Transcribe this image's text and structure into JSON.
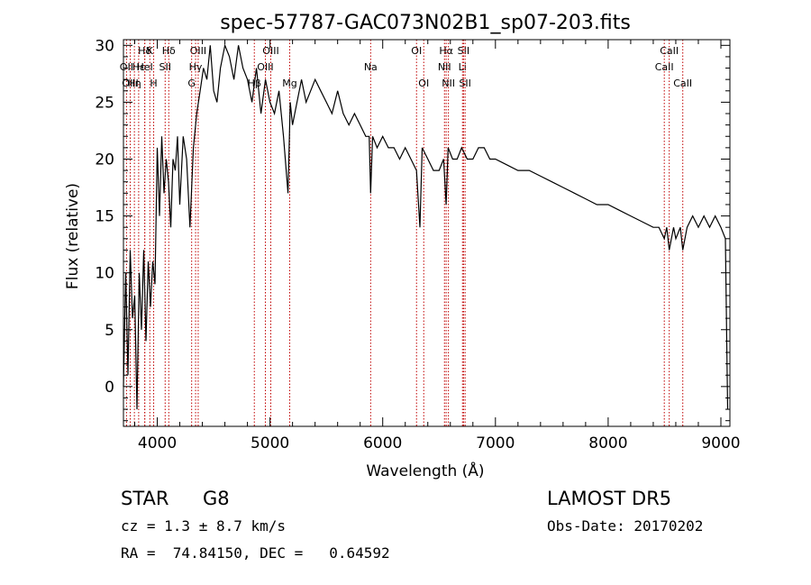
{
  "chart_data": {
    "type": "line",
    "title": "spec-57787-GAC073N02B1_sp07-203.fits",
    "xlabel": "Wavelength (Å)",
    "ylabel": "Flux (relative)",
    "xlim": [
      3700,
      9080
    ],
    "ylim": [
      -3.5,
      30.5
    ],
    "x_ticks": [
      4000,
      5000,
      6000,
      7000,
      8000,
      9000
    ],
    "y_ticks": [
      0,
      5,
      10,
      15,
      20,
      25,
      30
    ],
    "grid": false,
    "line_color": "#000000",
    "marker_color": "#c00000",
    "spectrum": {
      "x": [
        3700,
        3720,
        3740,
        3760,
        3780,
        3800,
        3820,
        3840,
        3860,
        3880,
        3900,
        3920,
        3940,
        3960,
        3980,
        4000,
        4020,
        4040,
        4060,
        4080,
        4100,
        4120,
        4140,
        4160,
        4180,
        4200,
        4230,
        4260,
        4290,
        4320,
        4350,
        4380,
        4410,
        4440,
        4470,
        4500,
        4530,
        4560,
        4600,
        4640,
        4680,
        4720,
        4760,
        4800,
        4840,
        4880,
        4920,
        4960,
        5000,
        5040,
        5080,
        5120,
        5160,
        5180,
        5200,
        5240,
        5280,
        5320,
        5360,
        5400,
        5450,
        5500,
        5550,
        5600,
        5650,
        5700,
        5750,
        5800,
        5850,
        5880,
        5893,
        5910,
        5950,
        6000,
        6050,
        6100,
        6150,
        6200,
        6250,
        6300,
        6330,
        6350,
        6400,
        6450,
        6500,
        6540,
        6563,
        6580,
        6620,
        6660,
        6700,
        6750,
        6800,
        6850,
        6900,
        6950,
        7000,
        7100,
        7200,
        7300,
        7400,
        7500,
        7600,
        7700,
        7800,
        7900,
        8000,
        8100,
        8200,
        8300,
        8400,
        8450,
        8498,
        8520,
        8542,
        8580,
        8600,
        8640,
        8662,
        8700,
        8750,
        8800,
        8850,
        8900,
        8950,
        9000,
        9040,
        9060
      ],
      "y": [
        0,
        10,
        1,
        12,
        6,
        8,
        -2,
        10,
        5,
        12,
        4,
        11,
        7,
        11,
        9,
        21,
        15,
        22,
        17,
        20,
        18,
        14,
        20,
        19,
        22,
        16,
        22,
        20,
        14,
        21,
        24,
        26,
        28,
        27,
        30,
        26,
        25,
        28,
        30,
        29,
        27,
        30,
        28,
        27,
        25,
        28,
        24,
        27,
        25,
        24,
        26,
        22,
        17,
        25,
        23,
        25,
        27,
        25,
        26,
        27,
        26,
        25,
        24,
        26,
        24,
        23,
        24,
        23,
        22,
        22,
        17,
        22,
        21,
        22,
        21,
        21,
        20,
        21,
        20,
        19,
        14,
        21,
        20,
        19,
        19,
        20,
        16,
        21,
        20,
        20,
        21,
        20,
        20,
        21,
        21,
        20,
        20,
        19.5,
        19,
        19,
        18.5,
        18,
        17.5,
        17,
        16.5,
        16,
        16,
        15.5,
        15,
        14.5,
        14,
        14,
        13,
        14,
        12,
        14,
        13,
        14,
        12,
        14,
        15,
        14,
        15,
        14,
        15,
        14,
        13,
        -2
      ]
    },
    "line_markers": [
      {
        "name": "Hδ",
        "x": 3889,
        "row": 1
      },
      {
        "name": "OII",
        "x": 3727,
        "row": 2
      },
      {
        "name": "OIII",
        "x": 3760,
        "row": 3
      },
      {
        "name": "Hε",
        "x": 3835,
        "row": 2
      },
      {
        "name": "Hη",
        "x": 3797,
        "row": 3
      },
      {
        "name": "HeI",
        "x": 3889,
        "row": 2
      },
      {
        "name": "K",
        "x": 3934,
        "row": 1
      },
      {
        "name": "H",
        "x": 3968,
        "row": 3
      },
      {
        "name": "SII",
        "x": 4070,
        "row": 2
      },
      {
        "name": "Hδ",
        "x": 4102,
        "row": 1
      },
      {
        "name": "OIII",
        "x": 4363,
        "row": 1
      },
      {
        "name": "Hγ",
        "x": 4340,
        "row": 2
      },
      {
        "name": "G",
        "x": 4305,
        "row": 3
      },
      {
        "name": "OIII",
        "x": 5007,
        "row": 1
      },
      {
        "name": "OIII",
        "x": 4959,
        "row": 2
      },
      {
        "name": "Hβ",
        "x": 4861,
        "row": 3
      },
      {
        "name": "Mg",
        "x": 5175,
        "row": 3
      },
      {
        "name": "Na",
        "x": 5893,
        "row": 2
      },
      {
        "name": "OI",
        "x": 6300,
        "row": 1
      },
      {
        "name": "OI",
        "x": 6364,
        "row": 3
      },
      {
        "name": "Hα",
        "x": 6563,
        "row": 1
      },
      {
        "name": "NII",
        "x": 6548,
        "row": 2
      },
      {
        "name": "NII",
        "x": 6583,
        "row": 3
      },
      {
        "name": "SII",
        "x": 6717,
        "row": 1
      },
      {
        "name": "Li",
        "x": 6708,
        "row": 2
      },
      {
        "name": "SII",
        "x": 6731,
        "row": 3
      },
      {
        "name": "CaII",
        "x": 8542,
        "row": 1
      },
      {
        "name": "CaII",
        "x": 8498,
        "row": 2
      },
      {
        "name": "CaII",
        "x": 8662,
        "row": 3
      }
    ]
  },
  "info": {
    "class": "STAR",
    "subclass": "G8",
    "survey": "LAMOST DR5",
    "cz": "cz = 1.3 ± 8.7 km/s",
    "obs_date": "Obs-Date: 20170202",
    "coords": "RA =  74.84150, DEC =   0.64592"
  }
}
